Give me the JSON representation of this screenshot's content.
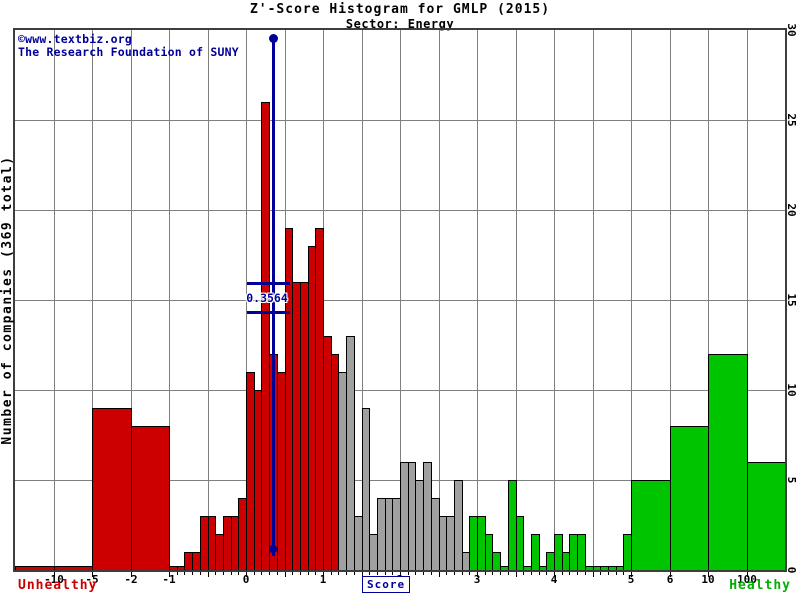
{
  "title": "Z'-Score Histogram for GMLP (2015)",
  "subtitle": "Sector: Energy",
  "watermark": {
    "line1": "©www.textbiz.org",
    "line2": "The Research Foundation of SUNY"
  },
  "y_axis": {
    "title": "Number of companies (369 total)",
    "ticks": [
      0,
      5,
      10,
      15,
      20,
      25,
      30
    ],
    "max": 30
  },
  "x_axis": {
    "label": "Score",
    "ticks": [
      -10,
      -5,
      -2,
      -1,
      0,
      1,
      2,
      3,
      4,
      5,
      6,
      10,
      100
    ],
    "left_caption": "Unhealthy",
    "right_caption": "Healthy"
  },
  "marker": {
    "label": "0.3564",
    "score": 0.3564
  },
  "colors": {
    "distress": "#cc0000",
    "neutral": "#a0a0a0",
    "safe": "#00c400",
    "marker": "#000099",
    "grid": "#7f7f7f",
    "caption_unhealthy": "#cc0000",
    "caption_healthy": "#00b000",
    "text": "#000000"
  },
  "chart_data": {
    "type": "bar",
    "title": "Z'-Score Histogram for GMLP (2015)",
    "subtitle": "Sector: Energy",
    "total_companies": 369,
    "ylabel": "Number of companies (369 total)",
    "xlabel": "Score",
    "ylim": [
      0,
      30
    ],
    "grid": true,
    "zone_thresholds": {
      "distress_below": 1.2,
      "safe_above": 2.9
    },
    "marker_score": 0.3564,
    "bins": {
      "start": -1.0,
      "width": 0.1,
      "counts": [
        0,
        0,
        1,
        1,
        3,
        3,
        2,
        3,
        3,
        4,
        11,
        10,
        26,
        12,
        11,
        19,
        16,
        16,
        18,
        19,
        13,
        12,
        11,
        13,
        3,
        9,
        2,
        4,
        4,
        4,
        6,
        6,
        5,
        6,
        4,
        3,
        3,
        5,
        1,
        3,
        3,
        2,
        1,
        0,
        5,
        3,
        0,
        2,
        0,
        1,
        2,
        1,
        2,
        2,
        0,
        0,
        0,
        0,
        0,
        2
      ]
    },
    "wide_bars": [
      {
        "from": "left-edge",
        "to": -10,
        "count": 0
      },
      {
        "from": -10,
        "to": -5,
        "count": 0
      },
      {
        "from": -5,
        "to": -2,
        "count": 9
      },
      {
        "from": -2,
        "to": -1,
        "count": 8
      },
      {
        "from": 5,
        "to": 6,
        "count": 5
      },
      {
        "from": 6,
        "to": 10,
        "count": 8
      },
      {
        "from": 10,
        "to": 100,
        "count": 12
      },
      {
        "from": 100,
        "to": "right-edge",
        "count": 6
      }
    ]
  }
}
